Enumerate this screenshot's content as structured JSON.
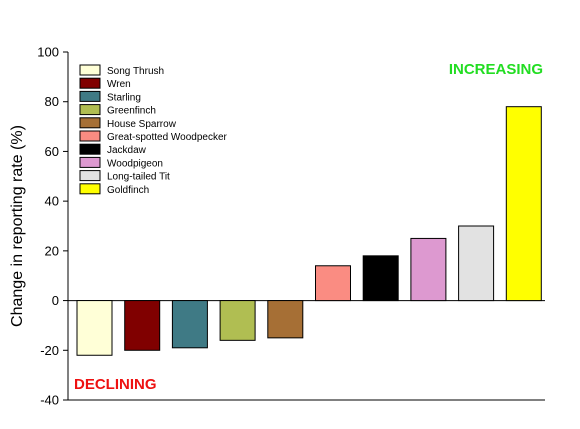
{
  "chart_data": {
    "type": "bar",
    "title": "",
    "xlabel": "",
    "ylabel": "Change in reporting rate (%)",
    "ylim": [
      -40,
      100
    ],
    "yticks": [
      -40,
      -20,
      0,
      20,
      40,
      60,
      80,
      100
    ],
    "grid": false,
    "legend_position": "top-left",
    "categories": [
      "Song Thrush",
      "Wren",
      "Starling",
      "Greenfinch",
      "House Sparrow",
      "Great-spotted Woodpecker",
      "Jackdaw",
      "Woodpigeon",
      "Long-tailed Tit",
      "Goldfinch"
    ],
    "values": [
      -22,
      -20,
      -19,
      -16,
      -15,
      14,
      18,
      25,
      30,
      78
    ],
    "colors": [
      "#ffffd7",
      "#800000",
      "#3f7a85",
      "#b0be52",
      "#a66f35",
      "#fa8c82",
      "#000000",
      "#dd99d0",
      "#e2e2e2",
      "#ffff00"
    ],
    "annotations": [
      {
        "text": "INCREASING",
        "color": "#22dd22",
        "position": "top-right"
      },
      {
        "text": "DECLINING",
        "color": "#ee1111",
        "position": "bottom-left"
      }
    ]
  }
}
